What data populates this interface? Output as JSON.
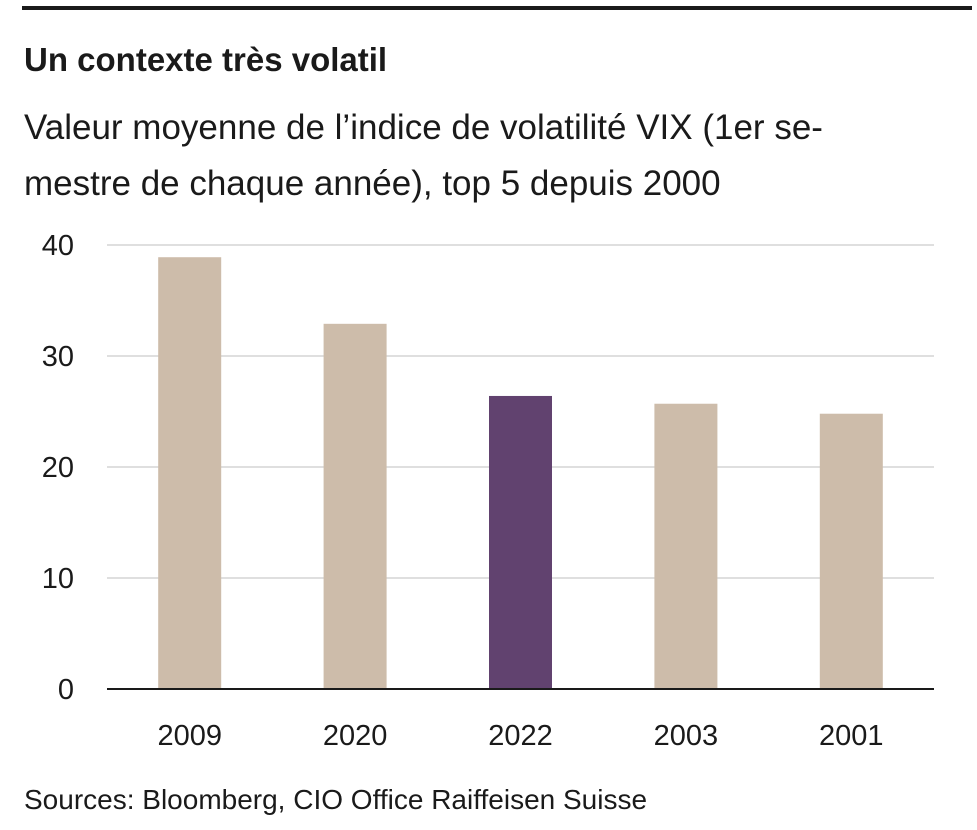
{
  "chart_data": {
    "type": "bar",
    "title": "Un contexte très volatil",
    "subtitle_lines": [
      "Valeur moyenne de l’indice de volatilité VIX (1er se-",
      "mestre de chaque année), top 5 depuis 2000"
    ],
    "categories": [
      "2009",
      "2020",
      "2022",
      "2003",
      "2001"
    ],
    "values": [
      38.9,
      32.9,
      26.4,
      25.7,
      24.8
    ],
    "highlight_index": 2,
    "ylim": [
      0,
      40
    ],
    "yticks": [
      0,
      10,
      20,
      30,
      40
    ],
    "grid": true,
    "colors": {
      "bar": "#cdbcaa",
      "highlight": "#61426f",
      "grid": "#cccccc",
      "axis": "#1a1a1a"
    }
  },
  "source": "Sources: Bloomberg, CIO Office Raiffeisen Suisse"
}
